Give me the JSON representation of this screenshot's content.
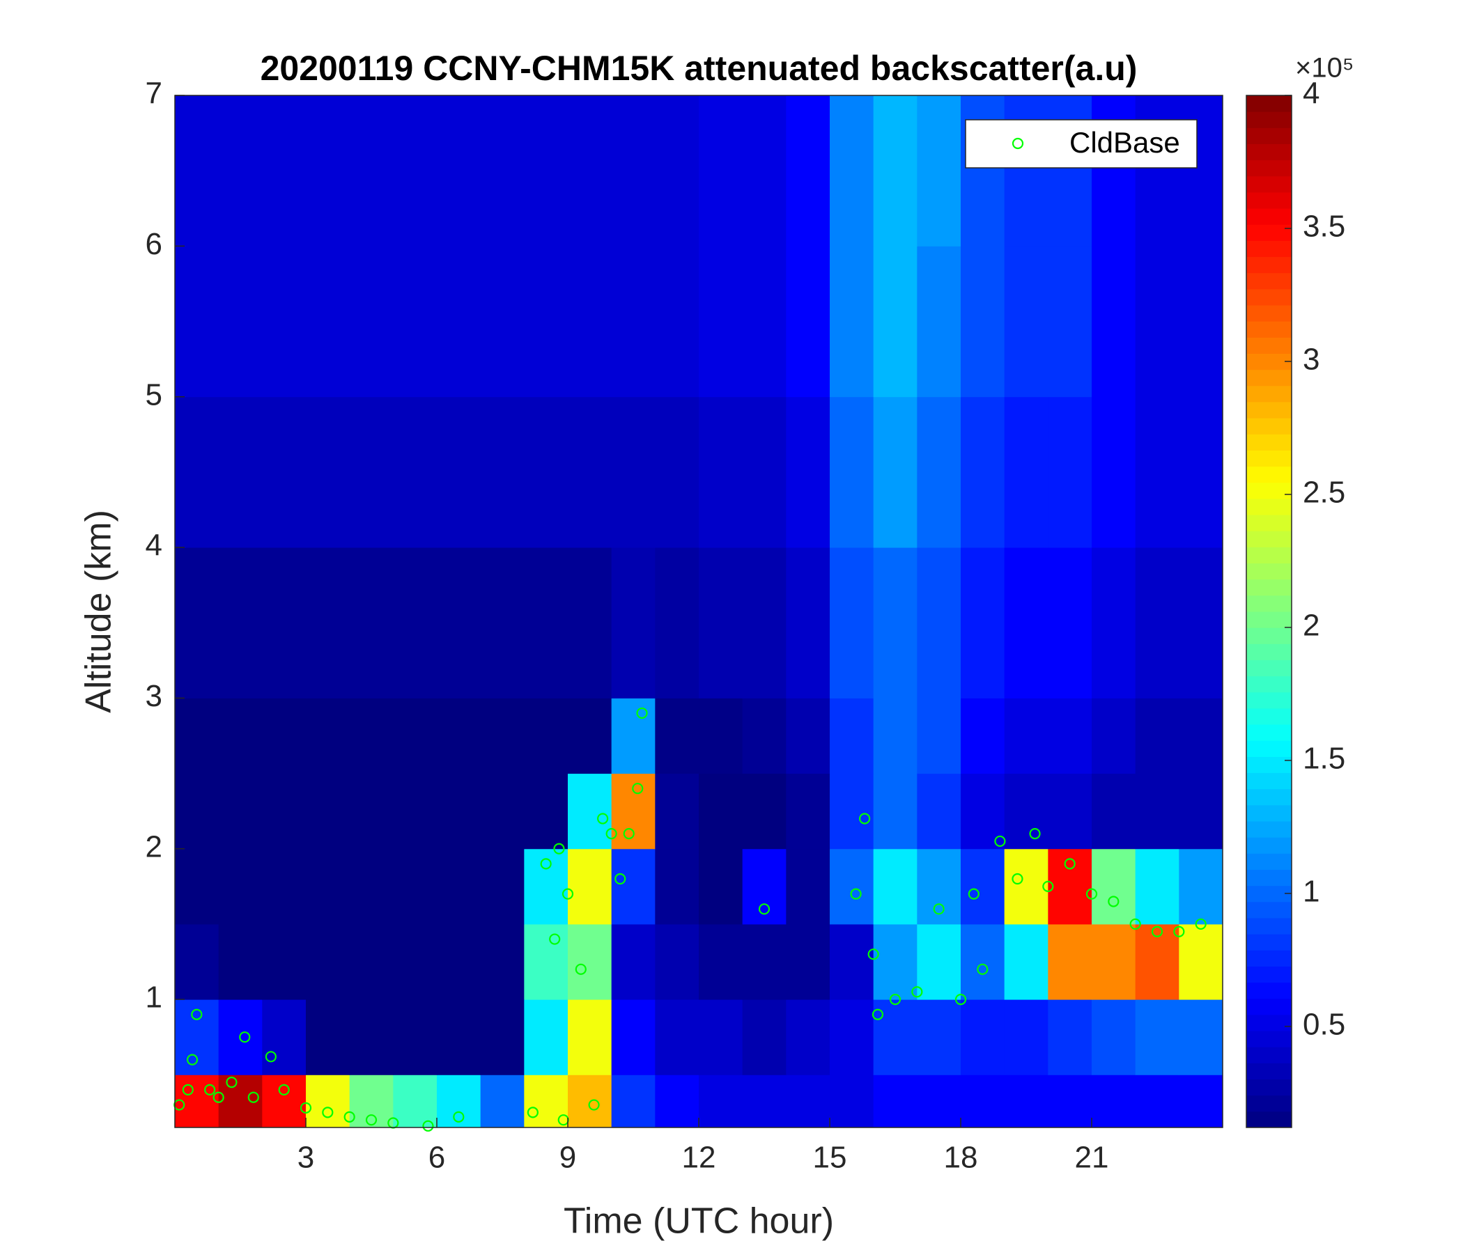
{
  "chart_data": {
    "type": "heatmap",
    "title": "20200119 CCNY-CHM15K attenuated backscatter(a.u)",
    "xlabel": "Time (UTC hour)",
    "ylabel": "Altitude (km)",
    "xlim": [
      0,
      24
    ],
    "ylim": [
      0.15,
      7
    ],
    "xticks": [
      3,
      6,
      9,
      12,
      15,
      18,
      21
    ],
    "yticks": [
      1,
      2,
      3,
      4,
      5,
      6,
      7
    ],
    "x_bins": [
      0,
      1,
      2,
      3,
      4,
      5,
      6,
      7,
      8,
      9,
      10,
      11,
      12,
      13,
      14,
      15,
      16,
      17,
      18,
      19,
      20,
      21,
      22,
      23,
      24
    ],
    "y_bins": [
      0.15,
      0.5,
      1,
      1.5,
      2,
      2.5,
      3,
      4,
      5,
      6,
      7
    ],
    "colormap": "jet",
    "clim": [
      0.12,
      4
    ],
    "cticks": [
      0.5,
      1,
      1.5,
      2,
      2.5,
      3,
      3.5,
      4
    ],
    "colorbar_multiplier": "×10⁵",
    "z": [
      [
        3.5,
        3.8,
        3.5,
        2.5,
        2,
        1.8,
        1.5,
        1,
        2.5,
        2.8,
        0.8,
        0.6,
        0.5,
        0.5,
        0.5,
        0.5,
        0.6,
        0.6,
        0.6,
        0.6,
        0.6,
        0.6,
        0.6,
        0.6
      ],
      [
        0.8,
        0.6,
        0.4,
        0.1,
        0.1,
        0.1,
        0.1,
        0.1,
        1.5,
        2.5,
        0.6,
        0.4,
        0.4,
        0.3,
        0.4,
        0.5,
        0.8,
        0.8,
        0.7,
        0.7,
        0.8,
        0.9,
        1,
        1
      ],
      [
        0.2,
        0.1,
        0.1,
        0.1,
        0.1,
        0.1,
        0.1,
        0.1,
        1.8,
        2,
        0.4,
        0.3,
        0.2,
        0.2,
        0.2,
        0.4,
        1.2,
        1.5,
        1,
        1.5,
        3,
        3,
        3.2,
        2.5
      ],
      [
        0.1,
        0.1,
        0.1,
        0.1,
        0.1,
        0.1,
        0.1,
        0.1,
        1.5,
        2.5,
        0.8,
        0.2,
        0.1,
        0.6,
        0.2,
        1,
        1.5,
        1.2,
        0.8,
        2.5,
        3.5,
        2,
        1.5,
        1.2
      ],
      [
        0.1,
        0.1,
        0.1,
        0.1,
        0.1,
        0.1,
        0.1,
        0.1,
        0.1,
        1.5,
        3,
        0.2,
        0.1,
        0.1,
        0.2,
        0.8,
        1,
        0.8,
        0.5,
        0.4,
        0.4,
        0.3,
        0.3,
        0.3
      ],
      [
        0.1,
        0.1,
        0.1,
        0.1,
        0.1,
        0.1,
        0.1,
        0.1,
        0.1,
        0.1,
        1.2,
        0.15,
        0.15,
        0.2,
        0.3,
        0.8,
        1,
        0.9,
        0.6,
        0.5,
        0.5,
        0.4,
        0.3,
        0.3
      ],
      [
        0.2,
        0.2,
        0.2,
        0.2,
        0.2,
        0.2,
        0.2,
        0.2,
        0.2,
        0.2,
        0.3,
        0.25,
        0.3,
        0.3,
        0.4,
        0.9,
        1,
        0.9,
        0.7,
        0.6,
        0.6,
        0.5,
        0.4,
        0.4
      ],
      [
        0.35,
        0.35,
        0.35,
        0.35,
        0.35,
        0.35,
        0.35,
        0.35,
        0.35,
        0.35,
        0.35,
        0.35,
        0.4,
        0.4,
        0.5,
        1,
        1.2,
        1,
        0.8,
        0.7,
        0.7,
        0.6,
        0.5,
        0.5
      ],
      [
        0.45,
        0.45,
        0.45,
        0.45,
        0.45,
        0.45,
        0.45,
        0.45,
        0.45,
        0.45,
        0.45,
        0.45,
        0.5,
        0.5,
        0.6,
        1.1,
        1.3,
        1.1,
        0.9,
        0.8,
        0.8,
        0.6,
        0.5,
        0.5
      ],
      [
        0.45,
        0.45,
        0.45,
        0.45,
        0.45,
        0.45,
        0.45,
        0.45,
        0.45,
        0.45,
        0.45,
        0.45,
        0.5,
        0.5,
        0.6,
        1.1,
        1.3,
        1.2,
        0.9,
        0.8,
        0.8,
        0.6,
        0.5,
        0.5
      ]
    ],
    "scatter": {
      "name": "CldBase",
      "color": "#00ff00",
      "x": [
        0.1,
        0.3,
        0.4,
        0.5,
        0.8,
        1,
        1.3,
        1.6,
        1.8,
        2.2,
        2.5,
        3,
        3.5,
        4,
        4.5,
        5,
        5.8,
        6.5,
        8.2,
        8.5,
        8.7,
        8.8,
        8.9,
        9,
        9.3,
        9.6,
        9.8,
        10,
        10.2,
        10.4,
        10.6,
        10.7,
        13.5,
        15.6,
        15.8,
        16,
        16.1,
        16.5,
        17,
        17.5,
        18,
        18.3,
        18.5,
        18.9,
        19.3,
        19.7,
        20,
        20.5,
        21,
        21.5,
        22,
        22.5,
        23,
        23.5
      ],
      "values": [
        0.3,
        0.4,
        0.6,
        0.9,
        0.4,
        0.35,
        0.45,
        0.75,
        0.35,
        0.62,
        0.4,
        0.28,
        0.25,
        0.22,
        0.2,
        0.18,
        0.16,
        0.22,
        0.25,
        1.9,
        1.4,
        2.0,
        0.2,
        1.7,
        1.2,
        0.3,
        2.2,
        2.1,
        1.8,
        2.1,
        2.4,
        2.9,
        1.6,
        1.7,
        2.2,
        1.3,
        0.9,
        1.0,
        1.05,
        1.6,
        1.0,
        1.7,
        1.2,
        2.05,
        1.8,
        2.1,
        1.75,
        1.9,
        1.7,
        1.65,
        1.5,
        1.45,
        1.45,
        1.5
      ]
    },
    "legend": "upper right"
  }
}
